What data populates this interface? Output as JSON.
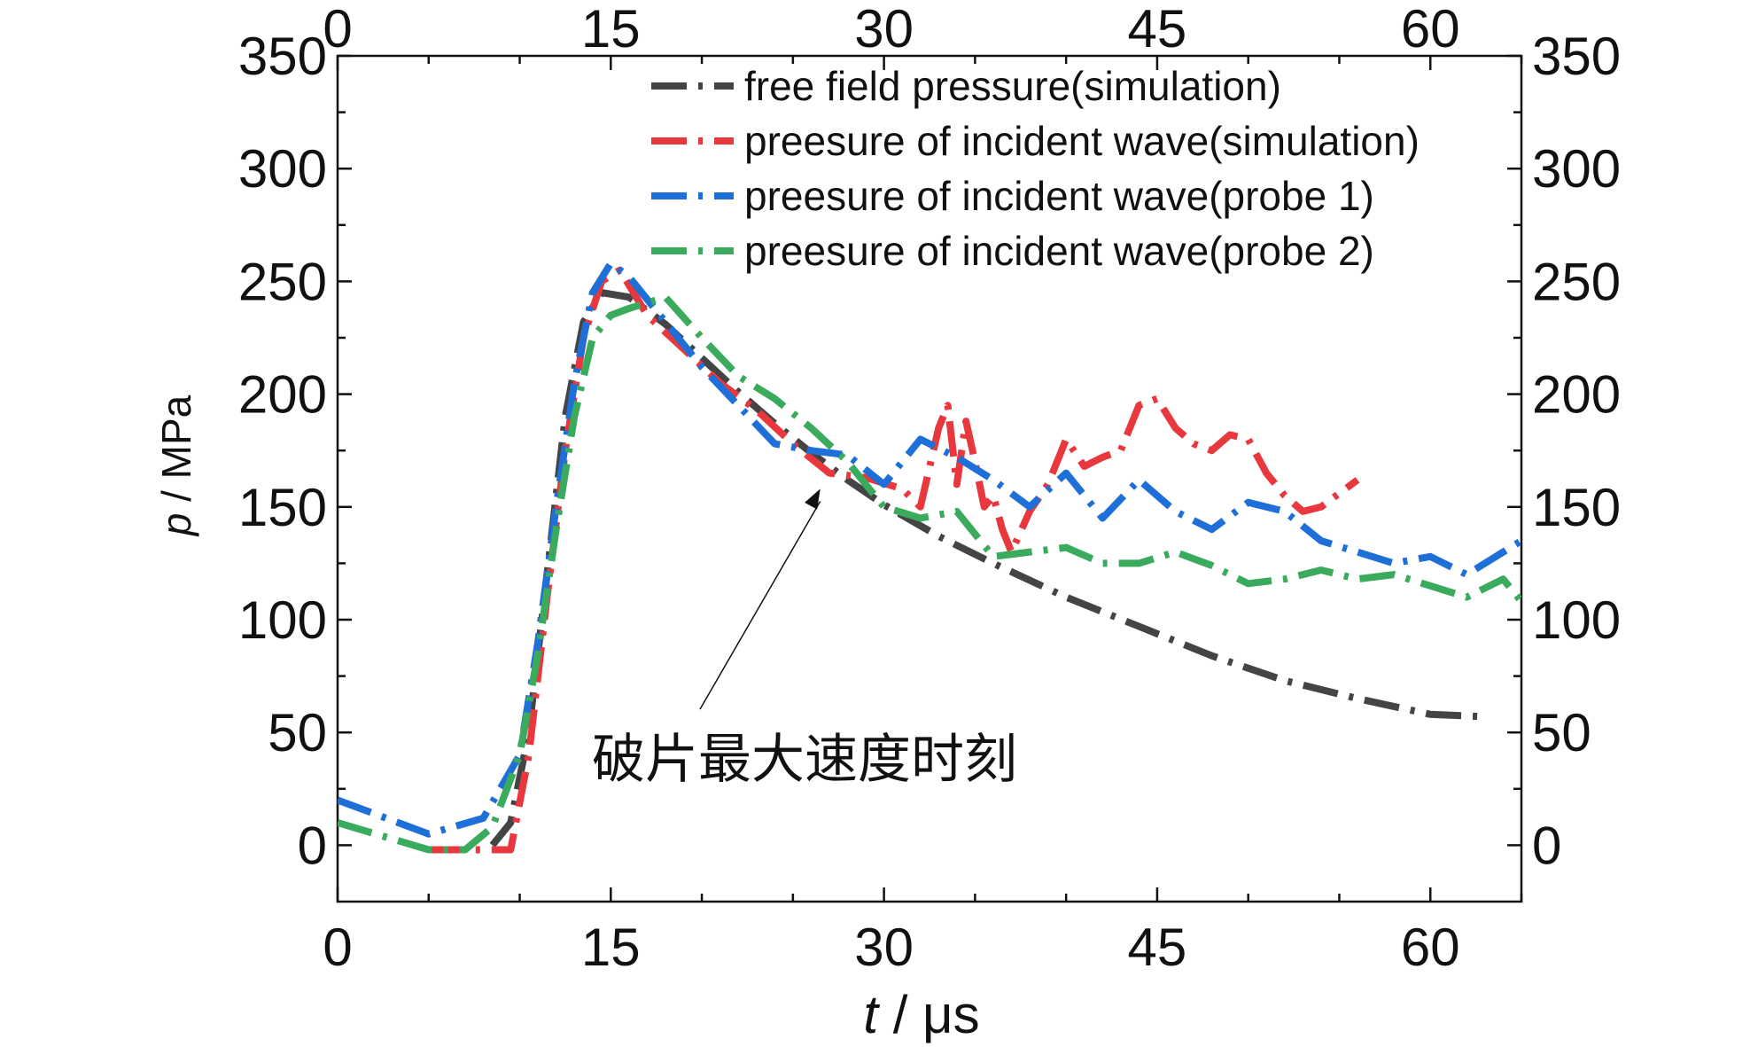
{
  "chart_data": {
    "type": "line",
    "xlabel_var": "t",
    "xlabel_unit": " / μs",
    "ylabel_var": "p",
    "ylabel_unit": " / MPa",
    "xlim": [
      0,
      65
    ],
    "ylim": [
      -25,
      350
    ],
    "x_ticks": [
      0,
      15,
      30,
      45,
      60
    ],
    "y_ticks": [
      0,
      50,
      100,
      150,
      200,
      250,
      300,
      350
    ],
    "x_tick_labels": [
      "0",
      "15",
      "30",
      "45",
      "60"
    ],
    "y_tick_labels": [
      "0",
      "50",
      "100",
      "150",
      "200",
      "250",
      "300",
      "350"
    ],
    "grid": false,
    "legend_position": "top-center",
    "series": [
      {
        "name": "free field pressure(simulation)",
        "color": "#444444",
        "x": [
          8.5,
          9.5,
          10.5,
          11.5,
          12.5,
          13.5,
          14.5,
          16,
          18,
          20,
          22,
          24,
          26,
          28,
          30,
          33,
          36,
          40,
          44,
          48,
          52,
          56,
          60,
          63
        ],
        "y": [
          0,
          10,
          50,
          120,
          190,
          232,
          245,
          243,
          231,
          216,
          201,
          187,
          174,
          162,
          151,
          137,
          125,
          110,
          97,
          84,
          73,
          65,
          58,
          57
        ]
      },
      {
        "name": "preesure of incident wave(simulation)",
        "color": "#e8383d",
        "x": [
          5,
          7,
          9.5,
          10.5,
          11.5,
          12.5,
          13.5,
          14.5,
          15.5,
          17,
          19,
          21,
          23,
          25,
          27,
          29,
          31,
          32,
          33,
          33.5,
          34,
          34.5,
          35,
          35.5,
          36,
          36.5,
          37,
          38,
          39,
          40,
          41,
          42,
          43,
          44,
          45,
          46,
          47,
          48,
          49,
          50,
          51,
          52,
          53,
          54,
          55,
          56
        ],
        "y": [
          -2,
          -2,
          -2,
          40,
          110,
          175,
          225,
          250,
          255,
          235,
          220,
          205,
          193,
          178,
          165,
          163,
          158,
          150,
          185,
          195,
          160,
          188,
          170,
          150,
          155,
          140,
          130,
          148,
          160,
          180,
          168,
          172,
          175,
          195,
          198,
          185,
          178,
          175,
          182,
          180,
          165,
          155,
          148,
          150,
          156,
          162
        ]
      },
      {
        "name": "preesure of incident wave(probe 1)",
        "color": "#1f6fd8",
        "x": [
          0,
          5,
          8,
          10,
          11,
          12,
          13,
          14,
          15,
          16,
          18,
          20,
          22,
          24,
          26,
          28,
          30,
          32,
          34,
          36,
          38,
          40,
          42,
          44,
          46,
          48,
          50,
          52,
          54,
          56,
          58,
          60,
          62,
          64,
          65
        ],
        "y": [
          20,
          5,
          12,
          40,
          90,
          150,
          205,
          245,
          258,
          252,
          232,
          212,
          195,
          178,
          175,
          173,
          160,
          180,
          172,
          162,
          150,
          165,
          145,
          162,
          148,
          140,
          152,
          148,
          135,
          130,
          125,
          128,
          120,
          130,
          135
        ]
      },
      {
        "name": "preesure of incident wave(probe 2)",
        "color": "#3aaa5c",
        "x": [
          0,
          5,
          7,
          8.5,
          10,
          11,
          12,
          13,
          14,
          15,
          16,
          18,
          20,
          22,
          24,
          26,
          28,
          30,
          32,
          34,
          36,
          38,
          40,
          42,
          44,
          46,
          48,
          50,
          52,
          54,
          56,
          58,
          60,
          62,
          64,
          65
        ],
        "y": [
          10,
          -2,
          -2,
          8,
          40,
          85,
          140,
          190,
          225,
          235,
          238,
          243,
          225,
          208,
          198,
          185,
          170,
          150,
          145,
          148,
          128,
          130,
          132,
          125,
          125,
          130,
          124,
          116,
          118,
          122,
          118,
          120,
          115,
          110,
          118,
          108
        ]
      }
    ],
    "annotation": {
      "text": "破片最大速度时刻",
      "x": 26.5,
      "y": 158
    }
  }
}
